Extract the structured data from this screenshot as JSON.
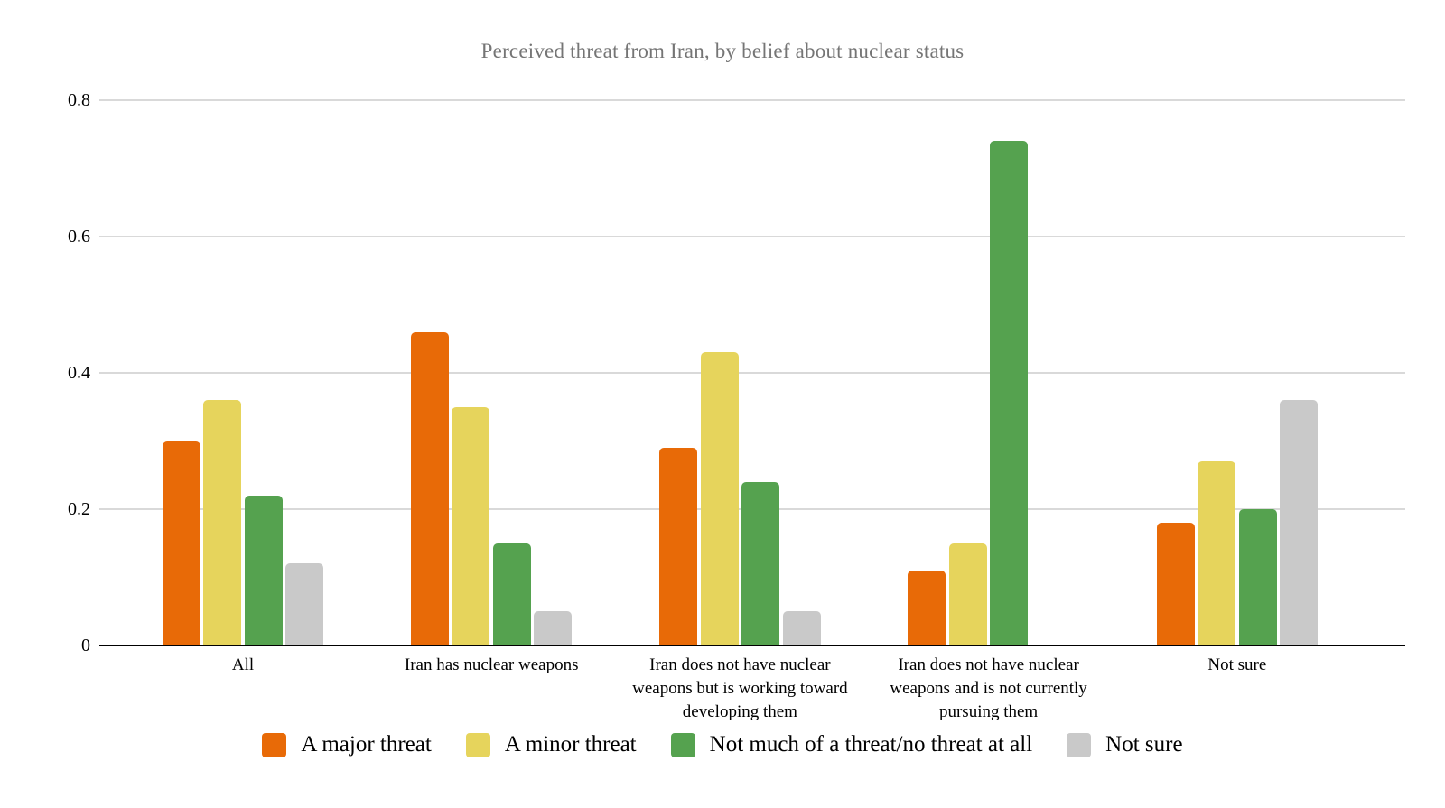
{
  "chart_data": {
    "type": "bar",
    "title": "Perceived threat from Iran, by belief about nuclear status",
    "xlabel": "",
    "ylabel": "",
    "categories": [
      "All",
      "Iran has nuclear weapons",
      "Iran does not have nuclear weapons but is working toward developing them",
      "Iran does not have nuclear weapons and is not currently pursuing them",
      "Not sure"
    ],
    "series": [
      {
        "name": "A major threat",
        "color": "#e86a07",
        "values": [
          0.3,
          0.46,
          0.29,
          0.11,
          0.18
        ]
      },
      {
        "name": "A minor threat",
        "color": "#e6d45c",
        "values": [
          0.36,
          0.35,
          0.43,
          0.15,
          0.27
        ]
      },
      {
        "name": "Not much of a threat/no threat at all",
        "color": "#55a24f",
        "values": [
          0.22,
          0.15,
          0.24,
          0.74,
          0.2
        ]
      },
      {
        "name": "Not sure",
        "color": "#c9c9c9",
        "values": [
          0.12,
          0.05,
          0.05,
          0.0,
          0.36
        ]
      }
    ],
    "y_ticks": [
      "0",
      "0.2",
      "0.4",
      "0.6",
      "0.8"
    ],
    "y_tick_values": [
      0,
      0.2,
      0.4,
      0.6,
      0.8
    ],
    "ylim": [
      0,
      0.8
    ],
    "grid": true,
    "legend_position": "bottom",
    "colors": {
      "title_text": "#757575",
      "axis_text": "#000000",
      "gridline": "#d9d9d9",
      "axis_line": "#000000",
      "background": "#ffffff"
    }
  }
}
